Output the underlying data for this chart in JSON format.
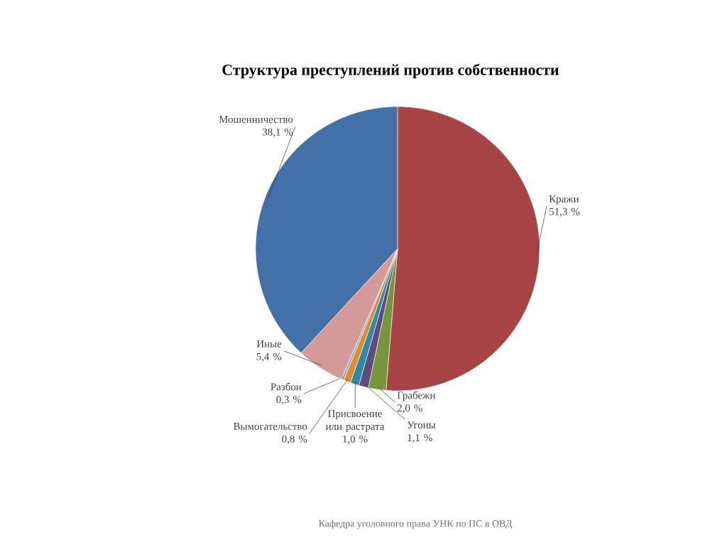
{
  "chart_data": {
    "type": "pie",
    "title": "Структура преступлений против собственности",
    "categories": [
      "Кражи",
      "Грабежи",
      "Угоны",
      "Присвоение или растрата",
      "Вымогательство",
      "Разбои",
      "Иные",
      "Мошенничество"
    ],
    "values": [
      51.3,
      2.0,
      1.1,
      1.0,
      0.8,
      0.3,
      5.4,
      38.1
    ],
    "colors": [
      "#a84446",
      "#77963c",
      "#614a7e",
      "#2e8ba5",
      "#e28a2e",
      "#93aed4",
      "#d49a9a",
      "#4470a8"
    ],
    "value_labels": [
      "51,3 %",
      "2,0 %",
      "1,1 %",
      "1,0 %",
      "0,8 %",
      "0,3 %",
      "5,4 %",
      "38,1 %"
    ],
    "annotations": [
      "Кафедра уголовного права УНК по ПС в ОВД"
    ]
  }
}
